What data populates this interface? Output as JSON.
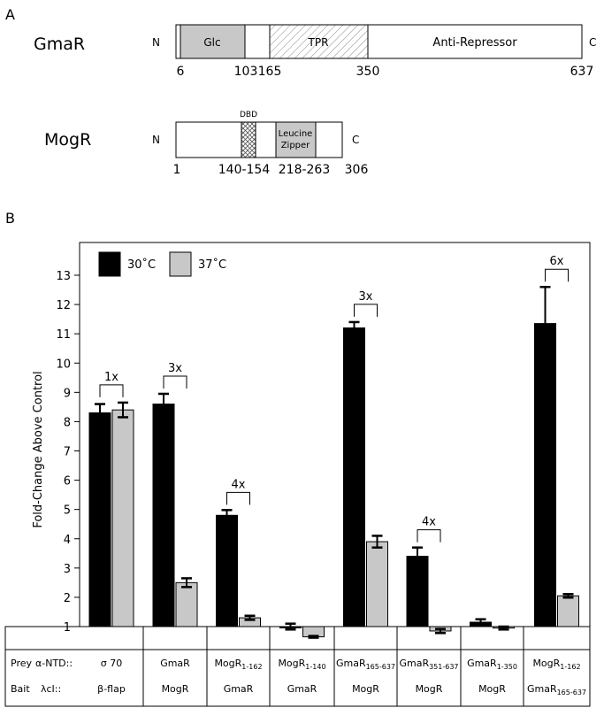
{
  "panel_a": {
    "label": "A",
    "gmar": {
      "name": "GmaR",
      "n": "N",
      "c": "C",
      "domains": [
        "Glc",
        "TPR",
        "Anti-Repressor"
      ],
      "positions": [
        "6",
        "103",
        "165",
        "350",
        "637"
      ]
    },
    "mogr": {
      "name": "MogR",
      "n": "N",
      "c": "C",
      "dbd": "DBD",
      "lz_line1": "Leucine",
      "lz_line2": "Zipper",
      "positions": [
        "1",
        "140-154",
        "218-263",
        "306"
      ]
    }
  },
  "panel_b": {
    "label": "B"
  },
  "chart_data": {
    "type": "bar",
    "ylabel": "Fold-Change Above Control",
    "ylim": [
      1,
      13
    ],
    "yticks": [
      1,
      2,
      3,
      4,
      5,
      6,
      7,
      8,
      9,
      10,
      11,
      12,
      13
    ],
    "legend_position": "top-left",
    "categories": [
      "σ 70 / β-flap",
      "GmaR / MogR",
      "MogR1-162 / GmaR",
      "MogR1-140 / GmaR",
      "GmaR165-637 / MogR",
      "GmaR351-637 / MogR",
      "GmaR1-350 / MogR",
      "MogR1-162 / GmaR165-637"
    ],
    "series": [
      {
        "name": "30˚C",
        "color": "#000000",
        "values": [
          8.3,
          8.6,
          4.8,
          1.0,
          11.2,
          3.4,
          1.15,
          11.35
        ],
        "errors": [
          0.3,
          0.35,
          0.18,
          0.1,
          0.2,
          0.3,
          0.1,
          1.25
        ]
      },
      {
        "name": "37˚C",
        "color": "#c8c8c8",
        "values": [
          8.4,
          2.5,
          1.3,
          0.65,
          3.9,
          0.85,
          0.95,
          2.05
        ],
        "errors": [
          0.25,
          0.15,
          0.07,
          0.03,
          0.2,
          0.07,
          0.05,
          0.06
        ]
      }
    ],
    "annotations": [
      {
        "group": 0,
        "text": "1x"
      },
      {
        "group": 1,
        "text": "3x"
      },
      {
        "group": 2,
        "text": "4x"
      },
      {
        "group": 4,
        "text": "3x"
      },
      {
        "group": 5,
        "text": "4x"
      },
      {
        "group": 7,
        "text": "6x"
      }
    ],
    "table": {
      "row1_label": "Prey",
      "row1_sub": "α-NTD::",
      "row2_label": "Bait",
      "row2_sub": "λcI::",
      "prey": [
        {
          "main": "σ 70",
          "sub": ""
        },
        {
          "main": "GmaR",
          "sub": ""
        },
        {
          "main": "MogR",
          "sub": "1-162"
        },
        {
          "main": "MogR",
          "sub": "1-140"
        },
        {
          "main": "GmaR",
          "sub": "165-637"
        },
        {
          "main": "GmaR",
          "sub": "351-637"
        },
        {
          "main": "GmaR",
          "sub": "1-350"
        },
        {
          "main": "MogR",
          "sub": "1-162"
        }
      ],
      "bait": [
        {
          "main": "β-flap",
          "sub": ""
        },
        {
          "main": "MogR",
          "sub": ""
        },
        {
          "main": "GmaR",
          "sub": ""
        },
        {
          "main": "GmaR",
          "sub": ""
        },
        {
          "main": "MogR",
          "sub": ""
        },
        {
          "main": "MogR",
          "sub": ""
        },
        {
          "main": "MogR",
          "sub": ""
        },
        {
          "main": "GmaR",
          "sub": "165-637"
        }
      ]
    }
  }
}
